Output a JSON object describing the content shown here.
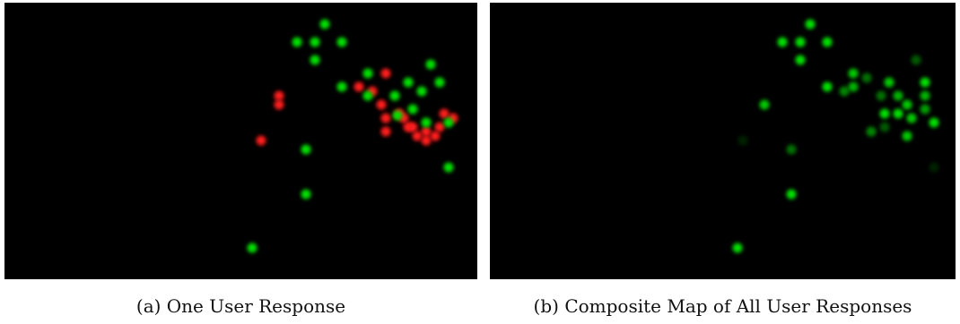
{
  "panels": [
    {
      "id": "a",
      "caption": "(a) One User Response",
      "colors": {
        "positive": "#00e000",
        "negative": "#ff1a1a"
      }
    },
    {
      "id": "b",
      "caption": "(b) Composite Map of All User Responses",
      "colors": {
        "positive": "#00e000"
      }
    }
  ]
}
